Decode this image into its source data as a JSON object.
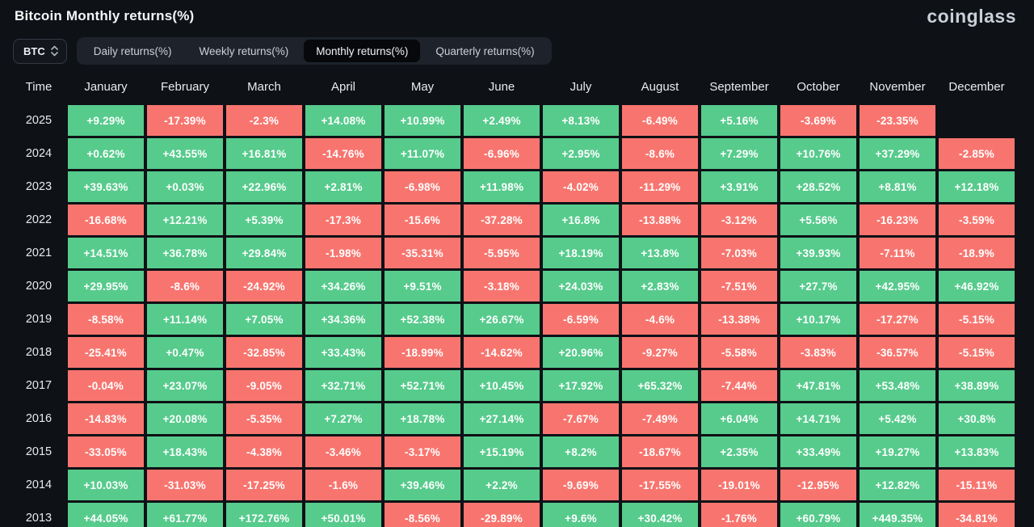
{
  "header": {
    "title": "Bitcoin Monthly returns(%)",
    "logo": "coinglass"
  },
  "controls": {
    "symbol_select": {
      "value": "BTC",
      "icon": "updown-chevrons-icon"
    },
    "tabs": [
      {
        "label": "Daily returns(%)",
        "active": false
      },
      {
        "label": "Weekly returns(%)",
        "active": false
      },
      {
        "label": "Monthly returns(%)",
        "active": true
      },
      {
        "label": "Quarterly returns(%)",
        "active": false
      }
    ]
  },
  "chart_data": {
    "type": "heatmap",
    "title": "Bitcoin Monthly returns(%)",
    "positive_color": "#56cb8c",
    "negative_color": "#f8756f",
    "columns": [
      "Time",
      "January",
      "February",
      "March",
      "April",
      "May",
      "June",
      "July",
      "August",
      "September",
      "October",
      "November",
      "December"
    ],
    "rows": [
      {
        "year": "2025",
        "values": [
          "+9.29%",
          "-17.39%",
          "-2.3%",
          "+14.08%",
          "+10.99%",
          "+2.49%",
          "+8.13%",
          "-6.49%",
          "+5.16%",
          "-3.69%",
          "-23.35%",
          ""
        ]
      },
      {
        "year": "2024",
        "values": [
          "+0.62%",
          "+43.55%",
          "+16.81%",
          "-14.76%",
          "+11.07%",
          "-6.96%",
          "+2.95%",
          "-8.6%",
          "+7.29%",
          "+10.76%",
          "+37.29%",
          "-2.85%"
        ]
      },
      {
        "year": "2023",
        "values": [
          "+39.63%",
          "+0.03%",
          "+22.96%",
          "+2.81%",
          "-6.98%",
          "+11.98%",
          "-4.02%",
          "-11.29%",
          "+3.91%",
          "+28.52%",
          "+8.81%",
          "+12.18%"
        ]
      },
      {
        "year": "2022",
        "values": [
          "-16.68%",
          "+12.21%",
          "+5.39%",
          "-17.3%",
          "-15.6%",
          "-37.28%",
          "+16.8%",
          "-13.88%",
          "-3.12%",
          "+5.56%",
          "-16.23%",
          "-3.59%"
        ]
      },
      {
        "year": "2021",
        "values": [
          "+14.51%",
          "+36.78%",
          "+29.84%",
          "-1.98%",
          "-35.31%",
          "-5.95%",
          "+18.19%",
          "+13.8%",
          "-7.03%",
          "+39.93%",
          "-7.11%",
          "-18.9%"
        ]
      },
      {
        "year": "2020",
        "values": [
          "+29.95%",
          "-8.6%",
          "-24.92%",
          "+34.26%",
          "+9.51%",
          "-3.18%",
          "+24.03%",
          "+2.83%",
          "-7.51%",
          "+27.7%",
          "+42.95%",
          "+46.92%"
        ]
      },
      {
        "year": "2019",
        "values": [
          "-8.58%",
          "+11.14%",
          "+7.05%",
          "+34.36%",
          "+52.38%",
          "+26.67%",
          "-6.59%",
          "-4.6%",
          "-13.38%",
          "+10.17%",
          "-17.27%",
          "-5.15%"
        ]
      },
      {
        "year": "2018",
        "values": [
          "-25.41%",
          "+0.47%",
          "-32.85%",
          "+33.43%",
          "-18.99%",
          "-14.62%",
          "+20.96%",
          "-9.27%",
          "-5.58%",
          "-3.83%",
          "-36.57%",
          "-5.15%"
        ]
      },
      {
        "year": "2017",
        "values": [
          "-0.04%",
          "+23.07%",
          "-9.05%",
          "+32.71%",
          "+52.71%",
          "+10.45%",
          "+17.92%",
          "+65.32%",
          "-7.44%",
          "+47.81%",
          "+53.48%",
          "+38.89%"
        ]
      },
      {
        "year": "2016",
        "values": [
          "-14.83%",
          "+20.08%",
          "-5.35%",
          "+7.27%",
          "+18.78%",
          "+27.14%",
          "-7.67%",
          "-7.49%",
          "+6.04%",
          "+14.71%",
          "+5.42%",
          "+30.8%"
        ]
      },
      {
        "year": "2015",
        "values": [
          "-33.05%",
          "+18.43%",
          "-4.38%",
          "-3.46%",
          "-3.17%",
          "+15.19%",
          "+8.2%",
          "-18.67%",
          "+2.35%",
          "+33.49%",
          "+19.27%",
          "+13.83%"
        ]
      },
      {
        "year": "2014",
        "values": [
          "+10.03%",
          "-31.03%",
          "-17.25%",
          "-1.6%",
          "+39.46%",
          "+2.2%",
          "-9.69%",
          "-17.55%",
          "-19.01%",
          "-12.95%",
          "+12.82%",
          "-15.11%"
        ]
      },
      {
        "year": "2013",
        "values": [
          "+44.05%",
          "+61.77%",
          "+172.76%",
          "+50.01%",
          "-8.56%",
          "-29.89%",
          "+9.6%",
          "+30.42%",
          "-1.76%",
          "+60.79%",
          "+449.35%",
          "-34.81%"
        ]
      }
    ]
  }
}
